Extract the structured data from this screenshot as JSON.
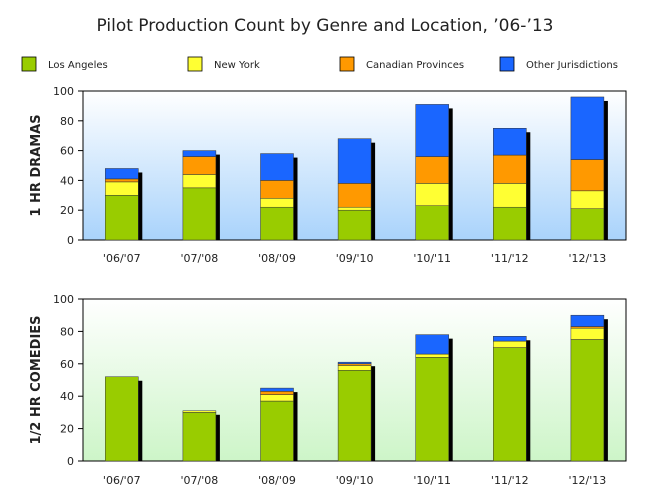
{
  "chart_data": {
    "title": "Pilot Production Count by Genre and Location, ’06-’13",
    "type": "bar",
    "stacked": true,
    "legend": {
      "placement": "top",
      "entries": [
        "Los Angeles",
        "New York",
        "Canadian Provinces",
        "Other Jurisdictions"
      ]
    },
    "colors": {
      "Los Angeles": "#99cc00",
      "New York": "#ffff33",
      "Canadian Provinces": "#ff9900",
      "Other Jurisdictions": "#1a66ff"
    },
    "panels": [
      {
        "ylabel": "1 HR DRAMAS",
        "ylim": [
          0,
          100
        ],
        "yticks": [
          0,
          20,
          40,
          60,
          80,
          100
        ],
        "grid": false,
        "background": "gradient-blue",
        "categories": [
          "'06/'07",
          "'07/'08",
          "'08/'09",
          "'09/'10",
          "'10/'11",
          "'11/'12",
          "'12/'13"
        ],
        "series": [
          {
            "name": "Los Angeles",
            "values": [
              30,
              35,
              22,
              20,
              23,
              22,
              21
            ]
          },
          {
            "name": "New York",
            "values": [
              9,
              9,
              6,
              2,
              15,
              16,
              12
            ]
          },
          {
            "name": "Canadian Provinces",
            "values": [
              2,
              12,
              12,
              16,
              18,
              19,
              21
            ]
          },
          {
            "name": "Other Jurisdictions",
            "values": [
              7,
              4,
              18,
              30,
              35,
              18,
              42
            ]
          }
        ]
      },
      {
        "ylabel": "1/2 HR COMEDIES",
        "ylim": [
          0,
          100
        ],
        "yticks": [
          0,
          20,
          40,
          60,
          80,
          100
        ],
        "grid": false,
        "background": "gradient-green",
        "categories": [
          "'06/'07",
          "'07/'08",
          "'08/'09",
          "'09/'10",
          "'10/'11",
          "'11/'12",
          "'12/'13"
        ],
        "series": [
          {
            "name": "Los Angeles",
            "values": [
              52,
              30,
              37,
              56,
              64,
              70,
              75
            ]
          },
          {
            "name": "New York",
            "values": [
              0,
              1,
              4,
              3,
              2,
              4,
              7
            ]
          },
          {
            "name": "Canadian Provinces",
            "values": [
              0,
              0,
              2,
              1,
              0,
              0,
              1
            ]
          },
          {
            "name": "Other Jurisdictions",
            "values": [
              0,
              0,
              2,
              1,
              12,
              3,
              7
            ]
          }
        ]
      }
    ]
  }
}
